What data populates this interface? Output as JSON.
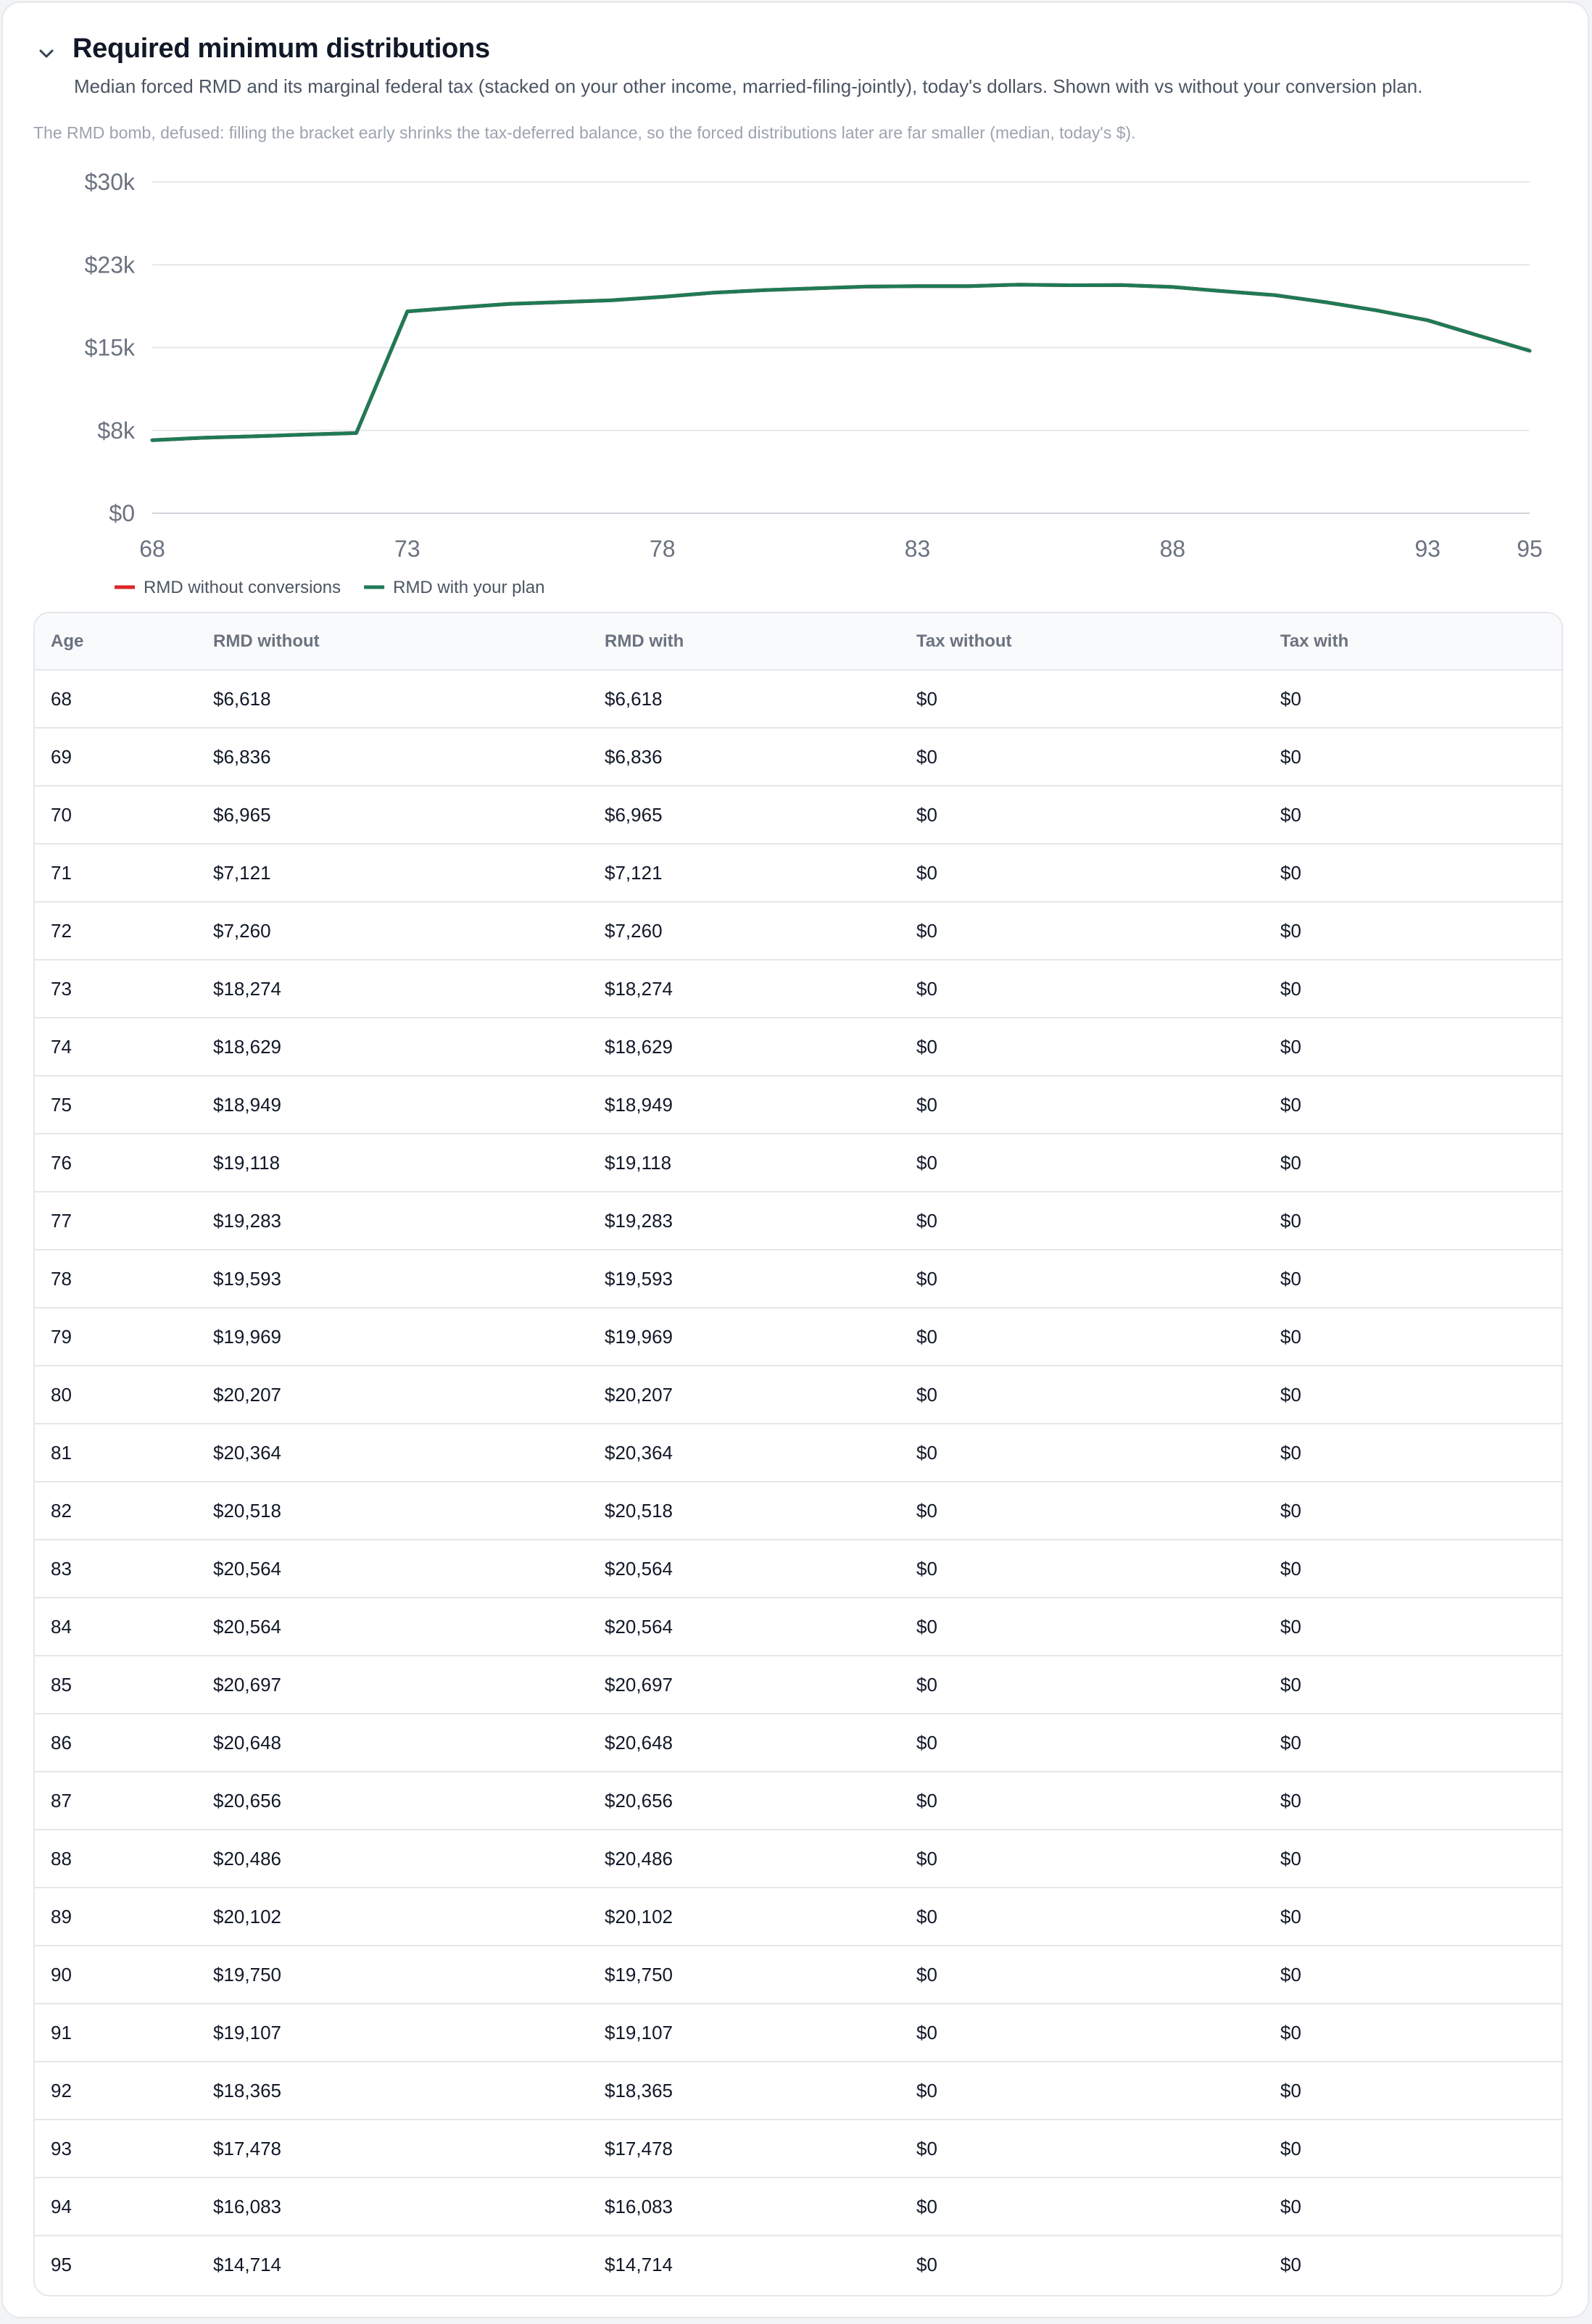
{
  "section": {
    "title": "Required minimum distributions",
    "subtitle": "Median forced RMD and its marginal federal tax (stacked on your other income, married-filing-jointly), today's dollars. Shown with vs without your conversion plan.",
    "caption": "The RMD bomb, defused: filling the bracket early shrinks the tax-deferred balance, so the forced distributions later are far smaller (median, today's $).",
    "collapse_icon": "chevron-down-icon"
  },
  "chart_data": {
    "type": "line",
    "x": [
      68,
      69,
      70,
      71,
      72,
      73,
      74,
      75,
      76,
      77,
      78,
      79,
      80,
      81,
      82,
      83,
      84,
      85,
      86,
      87,
      88,
      89,
      90,
      91,
      92,
      93,
      94,
      95
    ],
    "series": [
      {
        "name": "RMD without conversions",
        "color": "#dc2626",
        "values": [
          6618,
          6836,
          6965,
          7121,
          7260,
          18274,
          18629,
          18949,
          19118,
          19283,
          19593,
          19969,
          20207,
          20364,
          20518,
          20564,
          20564,
          20697,
          20648,
          20656,
          20486,
          20102,
          19750,
          19107,
          18365,
          17478,
          16083,
          14714
        ]
      },
      {
        "name": "RMD with your plan",
        "color": "#1f7a56",
        "values": [
          6618,
          6836,
          6965,
          7121,
          7260,
          18274,
          18629,
          18949,
          19118,
          19283,
          19593,
          19969,
          20207,
          20364,
          20518,
          20564,
          20564,
          20697,
          20648,
          20656,
          20486,
          20102,
          19750,
          19107,
          18365,
          17478,
          16083,
          14714
        ]
      }
    ],
    "xlim": [
      68,
      95
    ],
    "ylim": [
      0,
      30000
    ],
    "xticks": [
      "68",
      "73",
      "78",
      "83",
      "88",
      "93",
      "95"
    ],
    "yticks": [
      "$0",
      "$8k",
      "$15k",
      "$23k",
      "$30k"
    ],
    "grid": true,
    "legend": "bottom-left"
  },
  "table": {
    "headers": [
      "Age",
      "RMD without",
      "RMD with",
      "Tax without",
      "Tax with"
    ],
    "rows": [
      [
        "68",
        "$6,618",
        "$6,618",
        "$0",
        "$0"
      ],
      [
        "69",
        "$6,836",
        "$6,836",
        "$0",
        "$0"
      ],
      [
        "70",
        "$6,965",
        "$6,965",
        "$0",
        "$0"
      ],
      [
        "71",
        "$7,121",
        "$7,121",
        "$0",
        "$0"
      ],
      [
        "72",
        "$7,260",
        "$7,260",
        "$0",
        "$0"
      ],
      [
        "73",
        "$18,274",
        "$18,274",
        "$0",
        "$0"
      ],
      [
        "74",
        "$18,629",
        "$18,629",
        "$0",
        "$0"
      ],
      [
        "75",
        "$18,949",
        "$18,949",
        "$0",
        "$0"
      ],
      [
        "76",
        "$19,118",
        "$19,118",
        "$0",
        "$0"
      ],
      [
        "77",
        "$19,283",
        "$19,283",
        "$0",
        "$0"
      ],
      [
        "78",
        "$19,593",
        "$19,593",
        "$0",
        "$0"
      ],
      [
        "79",
        "$19,969",
        "$19,969",
        "$0",
        "$0"
      ],
      [
        "80",
        "$20,207",
        "$20,207",
        "$0",
        "$0"
      ],
      [
        "81",
        "$20,364",
        "$20,364",
        "$0",
        "$0"
      ],
      [
        "82",
        "$20,518",
        "$20,518",
        "$0",
        "$0"
      ],
      [
        "83",
        "$20,564",
        "$20,564",
        "$0",
        "$0"
      ],
      [
        "84",
        "$20,564",
        "$20,564",
        "$0",
        "$0"
      ],
      [
        "85",
        "$20,697",
        "$20,697",
        "$0",
        "$0"
      ],
      [
        "86",
        "$20,648",
        "$20,648",
        "$0",
        "$0"
      ],
      [
        "87",
        "$20,656",
        "$20,656",
        "$0",
        "$0"
      ],
      [
        "88",
        "$20,486",
        "$20,486",
        "$0",
        "$0"
      ],
      [
        "89",
        "$20,102",
        "$20,102",
        "$0",
        "$0"
      ],
      [
        "90",
        "$19,750",
        "$19,750",
        "$0",
        "$0"
      ],
      [
        "91",
        "$19,107",
        "$19,107",
        "$0",
        "$0"
      ],
      [
        "92",
        "$18,365",
        "$18,365",
        "$0",
        "$0"
      ],
      [
        "93",
        "$17,478",
        "$17,478",
        "$0",
        "$0"
      ],
      [
        "94",
        "$16,083",
        "$16,083",
        "$0",
        "$0"
      ],
      [
        "95",
        "$14,714",
        "$14,714",
        "$0",
        "$0"
      ]
    ]
  }
}
